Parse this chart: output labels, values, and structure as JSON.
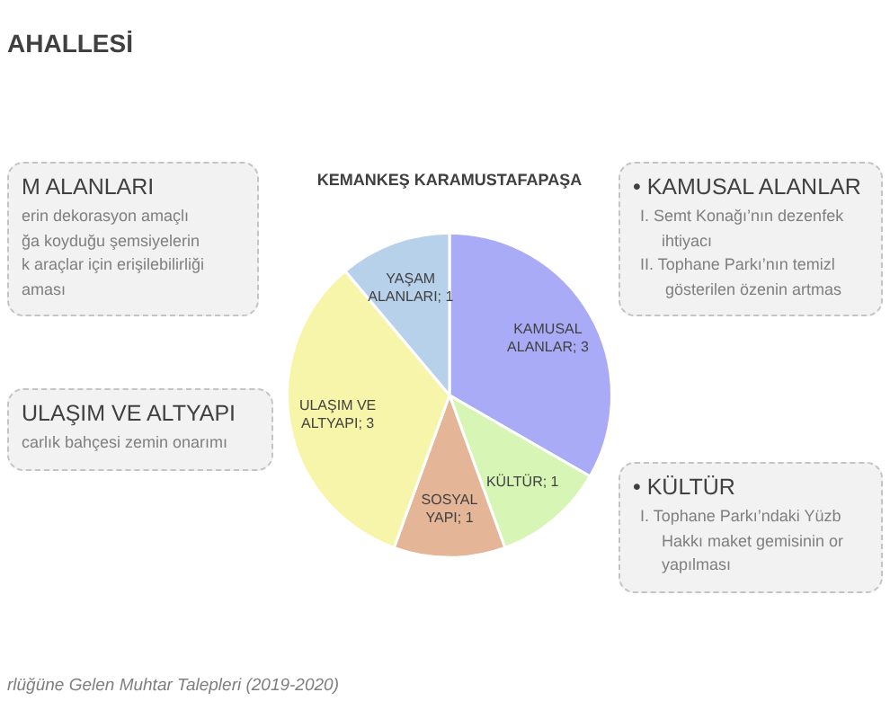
{
  "chart_data": {
    "type": "pie",
    "title": "KEMANKEŞ KARAMUSTAFAPAŞA",
    "categories": [
      "KAMUSAL ALANLAR",
      "KÜLTÜR",
      "SOSYAL YAPI",
      "ULAŞIM VE ALTYAPI",
      "YAŞAM ALANLARI"
    ],
    "values": [
      3,
      1,
      1,
      3,
      1
    ],
    "value_labels": [
      "; 3",
      "; 1",
      "; 1",
      "; 3",
      "; 1"
    ],
    "colors": [
      "#aaabf6",
      "#d7f5b5",
      "#e4b596",
      "#f7f5a9",
      "#b8d1eb"
    ],
    "legend": false,
    "annotations": [
      "AHALLESİ",
      "M ALANLARI",
      "erin dekorasyon amaçlı",
      "ğa koyduğu şemsiyelerin",
      "k araçlar için erişilebilirliği",
      "aması",
      "• KAMUSAL ALANLAR",
      "I. Semt Konağı’nın dezenfek",
      "ihtiyacı",
      "II. Tophane Parkı’nın temizl",
      "gösterilen özenin artmas",
      "ULAŞIM VE ALTYAPI",
      "carlık bahçesi zemin onarımı",
      "• KÜLTÜR",
      "I. Tophane Parkı’ndaki Yüzb",
      "Hakkı maket gemisinin or",
      "yapılması",
      "rlüğüne Gelen Muhtar Talepleri (2019-2020)"
    ]
  }
}
